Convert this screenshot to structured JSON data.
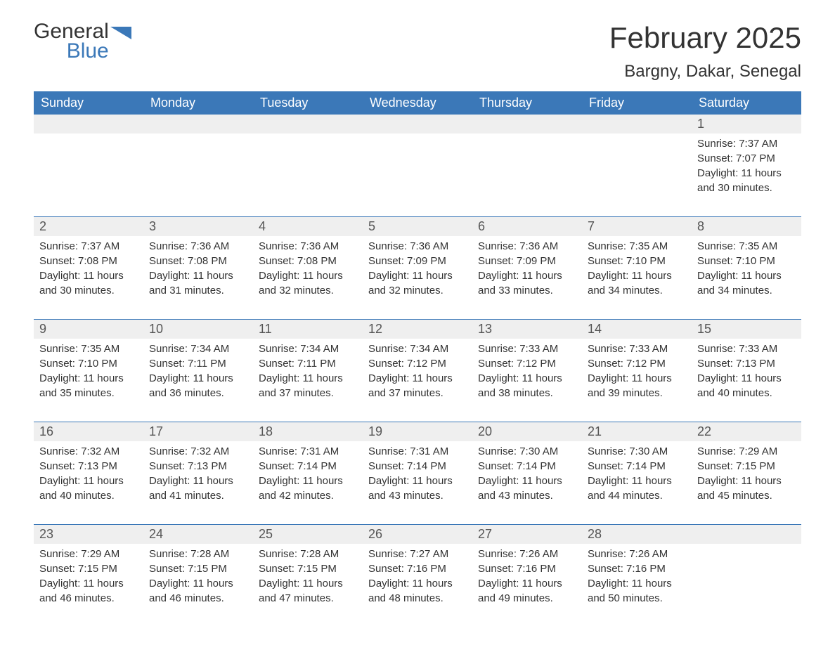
{
  "logo": {
    "word1": "General",
    "word2": "Blue"
  },
  "title": "February 2025",
  "location": "Bargny, Dakar, Senegal",
  "colors": {
    "header_bg": "#3b78b8",
    "header_text": "#ffffff",
    "daynum_bg": "#efefef",
    "text": "#333333",
    "logo_blue": "#3b78b8"
  },
  "dayNames": [
    "Sunday",
    "Monday",
    "Tuesday",
    "Wednesday",
    "Thursday",
    "Friday",
    "Saturday"
  ],
  "weeks": [
    [
      null,
      null,
      null,
      null,
      null,
      null,
      {
        "n": "1",
        "sunrise": "Sunrise: 7:37 AM",
        "sunset": "Sunset: 7:07 PM",
        "daylight1": "Daylight: 11 hours",
        "daylight2": "and 30 minutes."
      }
    ],
    [
      {
        "n": "2",
        "sunrise": "Sunrise: 7:37 AM",
        "sunset": "Sunset: 7:08 PM",
        "daylight1": "Daylight: 11 hours",
        "daylight2": "and 30 minutes."
      },
      {
        "n": "3",
        "sunrise": "Sunrise: 7:36 AM",
        "sunset": "Sunset: 7:08 PM",
        "daylight1": "Daylight: 11 hours",
        "daylight2": "and 31 minutes."
      },
      {
        "n": "4",
        "sunrise": "Sunrise: 7:36 AM",
        "sunset": "Sunset: 7:08 PM",
        "daylight1": "Daylight: 11 hours",
        "daylight2": "and 32 minutes."
      },
      {
        "n": "5",
        "sunrise": "Sunrise: 7:36 AM",
        "sunset": "Sunset: 7:09 PM",
        "daylight1": "Daylight: 11 hours",
        "daylight2": "and 32 minutes."
      },
      {
        "n": "6",
        "sunrise": "Sunrise: 7:36 AM",
        "sunset": "Sunset: 7:09 PM",
        "daylight1": "Daylight: 11 hours",
        "daylight2": "and 33 minutes."
      },
      {
        "n": "7",
        "sunrise": "Sunrise: 7:35 AM",
        "sunset": "Sunset: 7:10 PM",
        "daylight1": "Daylight: 11 hours",
        "daylight2": "and 34 minutes."
      },
      {
        "n": "8",
        "sunrise": "Sunrise: 7:35 AM",
        "sunset": "Sunset: 7:10 PM",
        "daylight1": "Daylight: 11 hours",
        "daylight2": "and 34 minutes."
      }
    ],
    [
      {
        "n": "9",
        "sunrise": "Sunrise: 7:35 AM",
        "sunset": "Sunset: 7:10 PM",
        "daylight1": "Daylight: 11 hours",
        "daylight2": "and 35 minutes."
      },
      {
        "n": "10",
        "sunrise": "Sunrise: 7:34 AM",
        "sunset": "Sunset: 7:11 PM",
        "daylight1": "Daylight: 11 hours",
        "daylight2": "and 36 minutes."
      },
      {
        "n": "11",
        "sunrise": "Sunrise: 7:34 AM",
        "sunset": "Sunset: 7:11 PM",
        "daylight1": "Daylight: 11 hours",
        "daylight2": "and 37 minutes."
      },
      {
        "n": "12",
        "sunrise": "Sunrise: 7:34 AM",
        "sunset": "Sunset: 7:12 PM",
        "daylight1": "Daylight: 11 hours",
        "daylight2": "and 37 minutes."
      },
      {
        "n": "13",
        "sunrise": "Sunrise: 7:33 AM",
        "sunset": "Sunset: 7:12 PM",
        "daylight1": "Daylight: 11 hours",
        "daylight2": "and 38 minutes."
      },
      {
        "n": "14",
        "sunrise": "Sunrise: 7:33 AM",
        "sunset": "Sunset: 7:12 PM",
        "daylight1": "Daylight: 11 hours",
        "daylight2": "and 39 minutes."
      },
      {
        "n": "15",
        "sunrise": "Sunrise: 7:33 AM",
        "sunset": "Sunset: 7:13 PM",
        "daylight1": "Daylight: 11 hours",
        "daylight2": "and 40 minutes."
      }
    ],
    [
      {
        "n": "16",
        "sunrise": "Sunrise: 7:32 AM",
        "sunset": "Sunset: 7:13 PM",
        "daylight1": "Daylight: 11 hours",
        "daylight2": "and 40 minutes."
      },
      {
        "n": "17",
        "sunrise": "Sunrise: 7:32 AM",
        "sunset": "Sunset: 7:13 PM",
        "daylight1": "Daylight: 11 hours",
        "daylight2": "and 41 minutes."
      },
      {
        "n": "18",
        "sunrise": "Sunrise: 7:31 AM",
        "sunset": "Sunset: 7:14 PM",
        "daylight1": "Daylight: 11 hours",
        "daylight2": "and 42 minutes."
      },
      {
        "n": "19",
        "sunrise": "Sunrise: 7:31 AM",
        "sunset": "Sunset: 7:14 PM",
        "daylight1": "Daylight: 11 hours",
        "daylight2": "and 43 minutes."
      },
      {
        "n": "20",
        "sunrise": "Sunrise: 7:30 AM",
        "sunset": "Sunset: 7:14 PM",
        "daylight1": "Daylight: 11 hours",
        "daylight2": "and 43 minutes."
      },
      {
        "n": "21",
        "sunrise": "Sunrise: 7:30 AM",
        "sunset": "Sunset: 7:14 PM",
        "daylight1": "Daylight: 11 hours",
        "daylight2": "and 44 minutes."
      },
      {
        "n": "22",
        "sunrise": "Sunrise: 7:29 AM",
        "sunset": "Sunset: 7:15 PM",
        "daylight1": "Daylight: 11 hours",
        "daylight2": "and 45 minutes."
      }
    ],
    [
      {
        "n": "23",
        "sunrise": "Sunrise: 7:29 AM",
        "sunset": "Sunset: 7:15 PM",
        "daylight1": "Daylight: 11 hours",
        "daylight2": "and 46 minutes."
      },
      {
        "n": "24",
        "sunrise": "Sunrise: 7:28 AM",
        "sunset": "Sunset: 7:15 PM",
        "daylight1": "Daylight: 11 hours",
        "daylight2": "and 46 minutes."
      },
      {
        "n": "25",
        "sunrise": "Sunrise: 7:28 AM",
        "sunset": "Sunset: 7:15 PM",
        "daylight1": "Daylight: 11 hours",
        "daylight2": "and 47 minutes."
      },
      {
        "n": "26",
        "sunrise": "Sunrise: 7:27 AM",
        "sunset": "Sunset: 7:16 PM",
        "daylight1": "Daylight: 11 hours",
        "daylight2": "and 48 minutes."
      },
      {
        "n": "27",
        "sunrise": "Sunrise: 7:26 AM",
        "sunset": "Sunset: 7:16 PM",
        "daylight1": "Daylight: 11 hours",
        "daylight2": "and 49 minutes."
      },
      {
        "n": "28",
        "sunrise": "Sunrise: 7:26 AM",
        "sunset": "Sunset: 7:16 PM",
        "daylight1": "Daylight: 11 hours",
        "daylight2": "and 50 minutes."
      },
      null
    ]
  ]
}
